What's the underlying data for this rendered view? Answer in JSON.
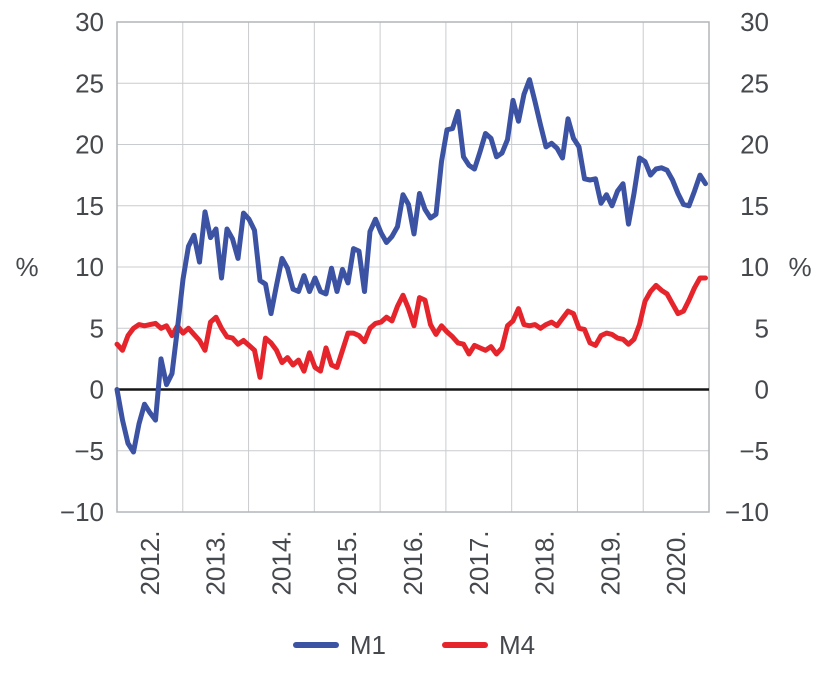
{
  "axes": {
    "y_left_unit": "%",
    "y_right_unit": "%",
    "y_tick_labels": [
      "30",
      "25",
      "20",
      "15",
      "10",
      "5",
      "0",
      "−5",
      "−10"
    ],
    "x_tick_labels": [
      "2012.",
      "2013.",
      "2014.",
      "2015.",
      "2016.",
      "2017.",
      "2018.",
      "2019.",
      "2020."
    ]
  },
  "legend": {
    "items": [
      {
        "label": "M1",
        "color": "#3c53a4"
      },
      {
        "label": "M4",
        "color": "#e5252b"
      }
    ]
  },
  "colors": {
    "grid": "#c9cccf",
    "border": "#b2b6b9",
    "zero_line": "#161616",
    "text": "#45494d",
    "background": "#ffffff"
  },
  "chart_data": {
    "type": "line",
    "title": "",
    "xlabel": "",
    "ylabel_left": "%",
    "ylabel_right": "%",
    "x_frequency": "monthly",
    "x_range": [
      "2012-01",
      "2020-12"
    ],
    "ylim": [
      -10,
      30
    ],
    "ytick_values": [
      30,
      25,
      20,
      15,
      10,
      5,
      0,
      -5,
      -10
    ],
    "grid": true,
    "zero_line": true,
    "legend_position": "bottom-center",
    "x_year_gridlines": [
      2013,
      2014,
      2015,
      2016,
      2017,
      2018,
      2019,
      2020
    ],
    "series": [
      {
        "name": "M1",
        "color": "#3c53a4",
        "values_by_year": {
          "2012": [
            0.0,
            -2.5,
            -4.4,
            -5.1,
            -2.8,
            -1.2,
            -1.9,
            -2.5,
            2.5,
            0.4,
            1.3,
            5.0
          ],
          "2013": [
            9.0,
            11.7,
            12.6,
            10.4,
            14.5,
            12.4,
            13.1,
            9.1,
            13.1,
            12.3,
            10.7,
            14.4
          ],
          "2014": [
            13.9,
            13.0,
            8.9,
            8.6,
            6.2,
            8.5,
            10.7,
            9.9,
            8.2,
            8.0,
            9.3,
            8.0
          ],
          "2015": [
            9.1,
            8.0,
            7.8,
            9.9,
            8.0,
            9.8,
            8.7,
            11.5,
            11.3,
            8.0,
            12.9,
            13.9
          ],
          "2016": [
            12.8,
            12.0,
            12.5,
            13.3,
            15.9,
            15.1,
            12.7,
            16.0,
            14.7,
            14.0,
            14.3,
            18.6
          ],
          "2017": [
            21.2,
            21.3,
            22.7,
            19.0,
            18.3,
            18.0,
            19.4,
            20.9,
            20.5,
            19.0,
            19.3,
            20.4
          ],
          "2018": [
            23.6,
            21.9,
            24.1,
            25.3,
            23.5,
            21.6,
            19.8,
            20.1,
            19.7,
            18.9,
            22.1,
            20.5
          ],
          "2019": [
            19.8,
            17.2,
            17.1,
            17.2,
            15.2,
            15.9,
            15.0,
            16.2,
            16.8,
            13.5,
            16.0,
            18.9
          ],
          "2020": [
            18.6,
            17.5,
            18.0,
            18.1,
            17.9,
            17.1,
            16.0,
            15.1,
            15.0,
            16.2,
            17.5,
            16.8
          ]
        }
      },
      {
        "name": "M4",
        "color": "#e5252b",
        "values_by_year": {
          "2012": [
            3.7,
            3.2,
            4.4,
            5.0,
            5.3,
            5.2,
            5.3,
            5.4,
            5.0,
            5.2,
            4.4,
            5.2
          ],
          "2013": [
            4.6,
            5.0,
            4.5,
            4.0,
            3.2,
            5.5,
            5.9,
            5.0,
            4.3,
            4.2,
            3.7,
            4.0
          ],
          "2014": [
            3.6,
            3.2,
            1.0,
            4.2,
            3.8,
            3.2,
            2.2,
            2.6,
            2.0,
            2.4,
            1.5,
            3.0
          ],
          "2015": [
            1.8,
            1.5,
            3.4,
            2.0,
            1.8,
            3.2,
            4.6,
            4.6,
            4.4,
            3.9,
            5.0,
            5.4
          ],
          "2016": [
            5.5,
            5.9,
            5.6,
            6.8,
            7.7,
            6.6,
            5.2,
            7.5,
            7.3,
            5.3,
            4.5,
            5.2
          ],
          "2017": [
            4.7,
            4.3,
            3.8,
            3.7,
            2.9,
            3.6,
            3.4,
            3.2,
            3.5,
            2.9,
            3.4,
            5.2
          ],
          "2018": [
            5.6,
            6.6,
            5.3,
            5.2,
            5.3,
            5.0,
            5.3,
            5.5,
            5.2,
            5.8,
            6.4,
            6.2
          ],
          "2019": [
            5.0,
            4.9,
            3.8,
            3.6,
            4.4,
            4.6,
            4.5,
            4.2,
            4.1,
            3.7,
            4.1,
            5.3
          ],
          "2020": [
            7.2,
            8.0,
            8.5,
            8.1,
            7.8,
            7.0,
            6.2,
            6.4,
            7.3,
            8.3,
            9.1,
            9.1
          ]
        }
      }
    ]
  }
}
